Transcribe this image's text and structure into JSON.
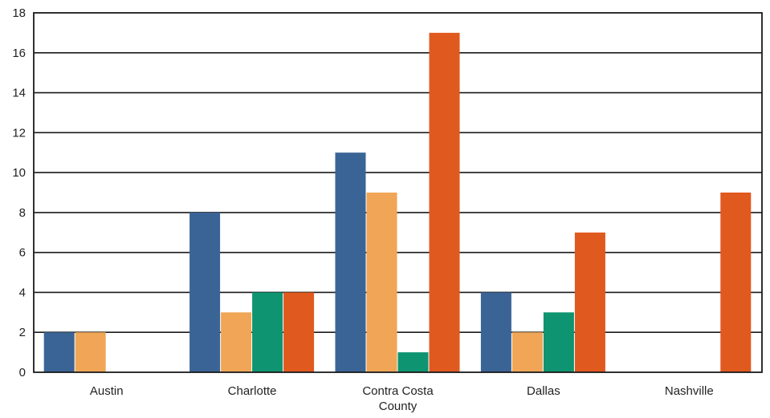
{
  "chart_data": {
    "type": "bar",
    "title": "",
    "xlabel": "",
    "ylabel": "",
    "ylim": [
      0,
      18
    ],
    "yticks": [
      0,
      2,
      4,
      6,
      8,
      10,
      12,
      14,
      16,
      18
    ],
    "grid": "horizontal",
    "legend": "none",
    "categories": [
      [
        "Austin"
      ],
      [
        "Charlotte"
      ],
      [
        "Contra Costa",
        "County"
      ],
      [
        "Dallas"
      ],
      [
        "Nashville"
      ]
    ],
    "series": [
      {
        "color": "#3a6496",
        "values": [
          2,
          8,
          11,
          4,
          0
        ]
      },
      {
        "color": "#f0a656",
        "values": [
          2,
          3,
          9,
          2,
          0
        ]
      },
      {
        "color": "#0e9470",
        "values": [
          0,
          4,
          1,
          3,
          0
        ]
      },
      {
        "color": "#e0591f",
        "values": [
          0,
          4,
          17,
          7,
          9
        ]
      }
    ]
  }
}
